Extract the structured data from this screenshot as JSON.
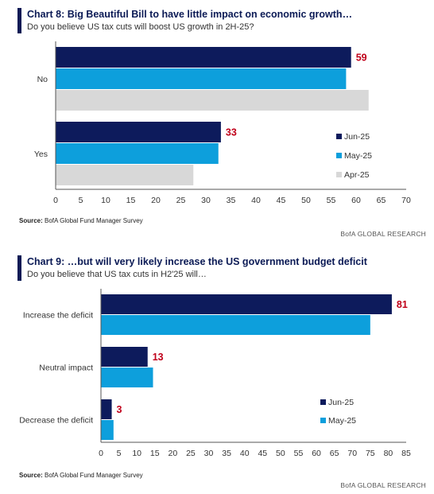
{
  "chart8": {
    "title": "Chart 8: Big Beautiful Bill to have little impact on economic growth…",
    "subtitle": "Do you believe US tax cuts will boost US growth in 2H-25?",
    "source_label": "Source:",
    "source_text": " BofA Global Fund Manager Survey",
    "brand": "BofA GLOBAL RESEARCH"
  },
  "chart9": {
    "title": "Chart 9: …but will very likely increase the US government budget deficit",
    "subtitle": "Do you believe that US tax cuts in H2'25 will…",
    "source_label": "Source:",
    "source_text": " BofA Global Fund Manager Survey",
    "brand": "BofA GLOBAL RESEARCH"
  },
  "colors": {
    "jun": "#0d1b5c",
    "may": "#0d9fdc",
    "apr": "#d8d8d8",
    "label_red": "#c0001a",
    "accent": "#0b1a55"
  },
  "chart_data": [
    {
      "type": "bar",
      "orientation": "horizontal",
      "categories": [
        "No",
        "Yes"
      ],
      "series": [
        {
          "name": "Jun-25",
          "values": [
            59,
            33
          ],
          "labeled": true
        },
        {
          "name": "May-25",
          "values": [
            58,
            32.5
          ]
        },
        {
          "name": "Apr-25",
          "values": [
            62.5,
            27.5
          ]
        }
      ],
      "xlim": [
        0,
        70
      ],
      "xticks": [
        0,
        5,
        10,
        15,
        20,
        25,
        30,
        35,
        40,
        45,
        50,
        55,
        60,
        65,
        70
      ],
      "legend_position": "bottom-right",
      "grid": false
    },
    {
      "type": "bar",
      "orientation": "horizontal",
      "categories": [
        "Increase the deficit",
        "Neutral impact",
        "Decrease the deficit"
      ],
      "series": [
        {
          "name": "Jun-25",
          "values": [
            81,
            13,
            3
          ],
          "labeled": true
        },
        {
          "name": "May-25",
          "values": [
            75,
            14.5,
            3.5
          ]
        }
      ],
      "xlim": [
        0,
        85
      ],
      "xticks": [
        0,
        5,
        10,
        15,
        20,
        25,
        30,
        35,
        40,
        45,
        50,
        55,
        60,
        65,
        70,
        75,
        80,
        85
      ],
      "legend_position": "bottom-right",
      "grid": false
    }
  ]
}
